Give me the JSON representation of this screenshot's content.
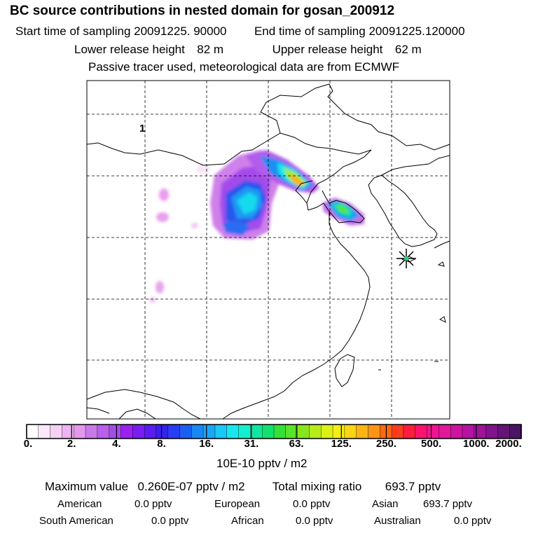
{
  "header": {
    "title": "BC  source contributions in nested domain for gosan_200912",
    "start_label": "Start time of sampling",
    "start_value": "20091225. 90000",
    "end_label": "End time of sampling",
    "end_value": "20091225.120000",
    "lower_label": "Lower release height",
    "lower_value": "82 m",
    "upper_label": "Upper release height",
    "upper_value": "62 m",
    "note": "Passive tracer used, meteorological data are from ECMWF"
  },
  "map": {
    "label_1": "1",
    "receptor_marker": "asterisk-receptor-icon"
  },
  "colorbar": {
    "labels": [
      "0.",
      "2.",
      "4.",
      "8.",
      "16.",
      "31.",
      "63.",
      "125.",
      "250.",
      "500.",
      "1000.",
      "2000."
    ],
    "colors": [
      "#ffffff",
      "#fbe8fb",
      "#f5d0f5",
      "#eeb4ef",
      "#e299ec",
      "#c97ae9",
      "#b860ec",
      "#a24cea",
      "#9a22f0",
      "#7a1ef0",
      "#5a1cf0",
      "#3a20f0",
      "#2a3df2",
      "#1c5ef4",
      "#1a86f6",
      "#1aa8f4",
      "#1ac8f4",
      "#19e6ef",
      "#14f0cf",
      "#10e6a0",
      "#14e070",
      "#34e03a",
      "#58e428",
      "#88e61c",
      "#b8ec18",
      "#dcf016",
      "#f4ee16",
      "#fcd414",
      "#fcb414",
      "#fc9414",
      "#fc6814",
      "#fc3c1c",
      "#fc1c3c",
      "#f8146c",
      "#f01490",
      "#e0189c",
      "#cc14a0",
      "#b414a0",
      "#9c1498",
      "#80148a",
      "#641478",
      "#4c1464"
    ],
    "unit": "10E-10 pptv / m2"
  },
  "summary": {
    "max_label": "Maximum value",
    "max_value": "0.260E-07 pptv / m2",
    "total_label": "Total mixing ratio",
    "total_value": "693.7 pptv",
    "regions": [
      {
        "name": "American",
        "value": "0.0 pptv"
      },
      {
        "name": "European",
        "value": "0.0 pptv"
      },
      {
        "name": "Asian",
        "value": "693.7 pptv"
      },
      {
        "name": "South American",
        "value": "0.0 pptv"
      },
      {
        "name": "African",
        "value": "0.0 pptv"
      },
      {
        "name": "Australian",
        "value": "0.0 pptv"
      }
    ]
  }
}
